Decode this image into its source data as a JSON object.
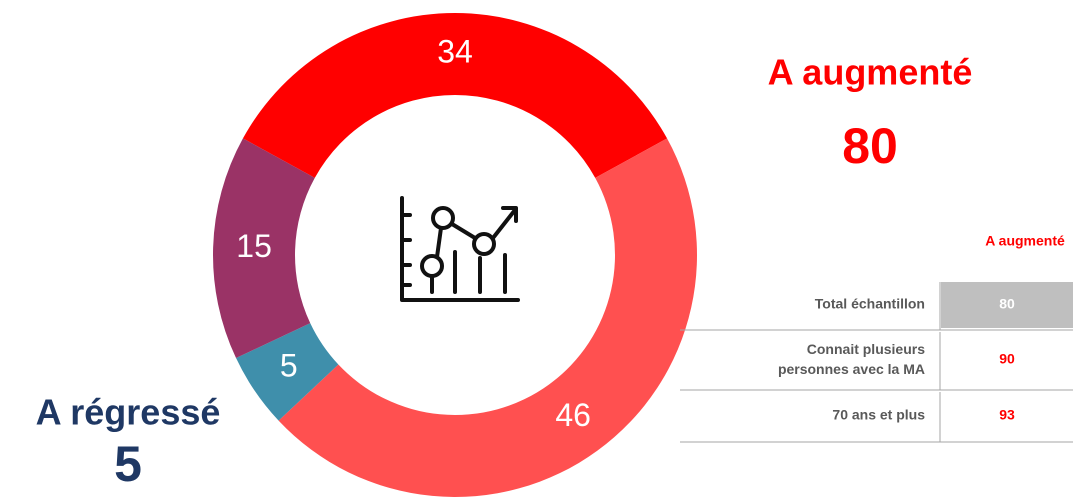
{
  "chart_data": {
    "type": "donut",
    "values": [
      34,
      46,
      5,
      15
    ],
    "colors": [
      "#ff0000",
      "#ff5050",
      "#3f8fab",
      "#9a3366"
    ],
    "annotations": [
      {
        "label": "A augmenté",
        "value": 80,
        "color": "#ff0000"
      },
      {
        "label": "A régressé",
        "value": 5,
        "color": "#1f3864"
      }
    ]
  },
  "table": {
    "title": "A augmenté",
    "rows": [
      {
        "label": "Total échantillon",
        "value": 80
      },
      {
        "label": "Connait plusieurs personnes avec la MA",
        "value": 90
      },
      {
        "label": "70 ans et plus",
        "value": 93
      }
    ]
  }
}
